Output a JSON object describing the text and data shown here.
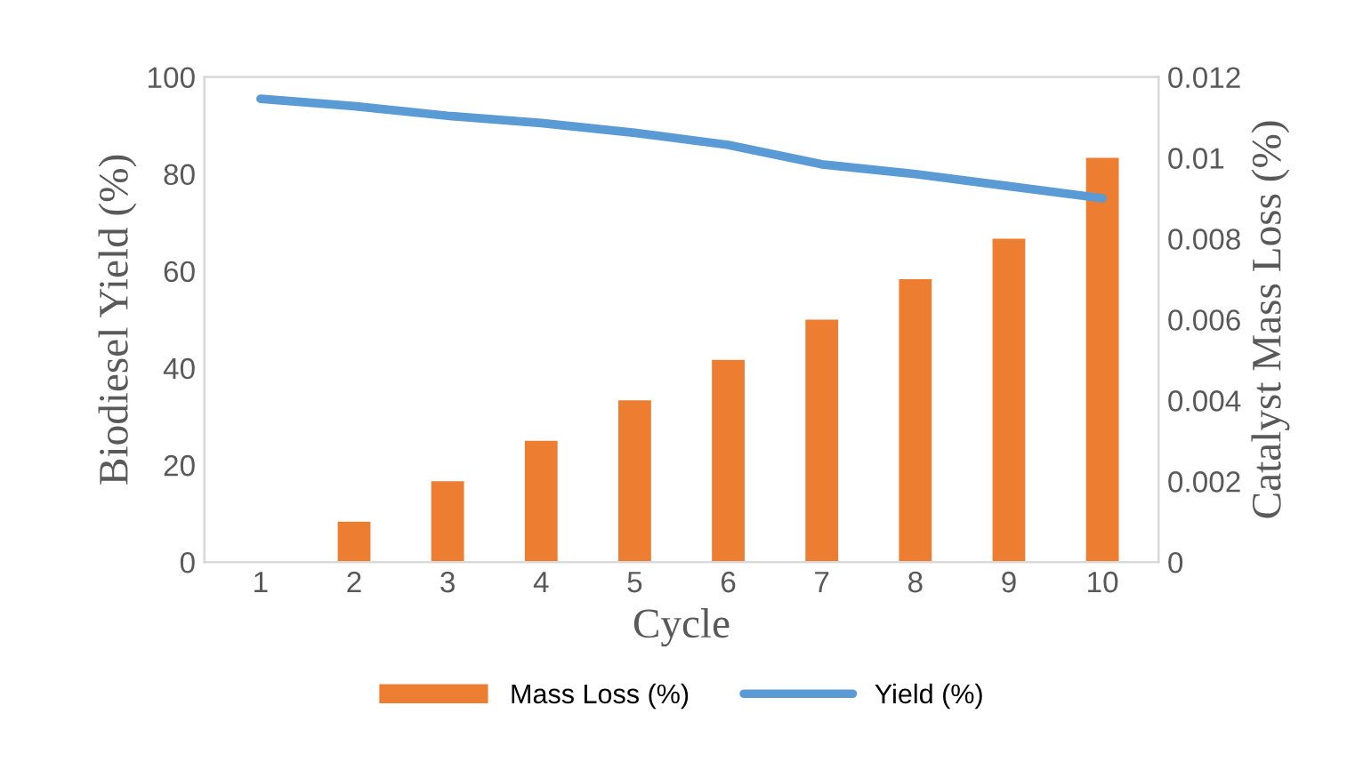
{
  "chart_data": {
    "type": "bar",
    "xlabel": "Cycle",
    "ylabel": "Biodiesel Yield (%)",
    "y2label": "Catalyst Mass Loss (%)",
    "categories": [
      "1",
      "2",
      "3",
      "4",
      "5",
      "6",
      "7",
      "8",
      "9",
      "10"
    ],
    "series": [
      {
        "name": "Mass Loss (%)",
        "axis": "y2",
        "color": "#ed7d31",
        "values": [
          0,
          0.001,
          0.002,
          0.003,
          0.004,
          0.005,
          0.006,
          0.007,
          0.008,
          0.01
        ]
      },
      {
        "name": "Yield (%)",
        "type": "line",
        "axis": "y",
        "color": "#5b9bd5",
        "values": [
          95.5,
          94,
          92,
          90.5,
          88.5,
          86,
          82,
          80,
          77.5,
          75
        ]
      }
    ],
    "ylim": [
      0,
      100
    ],
    "yticks": [
      0,
      20,
      40,
      60,
      80,
      100
    ],
    "y2lim": [
      0,
      0.012
    ],
    "y2ticks": [
      0,
      0.002,
      0.004,
      0.006,
      0.008,
      0.01,
      0.012
    ],
    "grid": false,
    "legend": "bottom",
    "marker": "none",
    "line_style": "solid"
  }
}
